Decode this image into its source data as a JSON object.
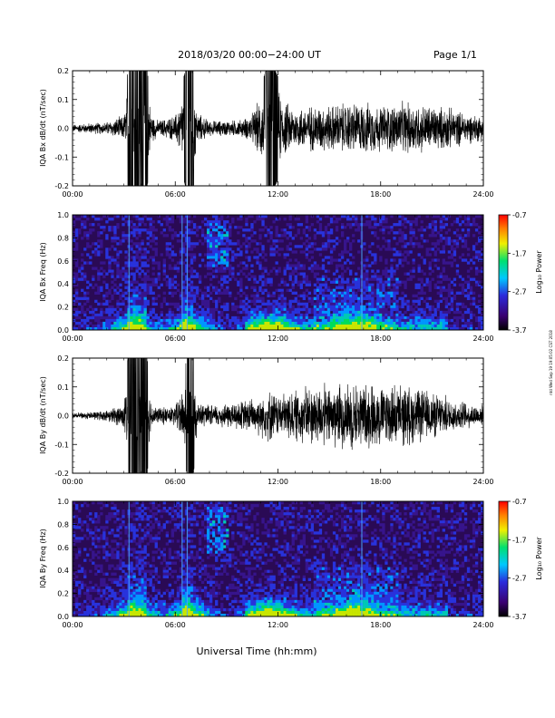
{
  "header": {
    "title": "2018/03/20  00:00−24:00 UT",
    "page": "Page 1/1"
  },
  "footer": {
    "xlabel": "Universal Time (hh:mm)",
    "side_stamp": "ntd Wed Sep 19 19:05:02 CST 2018"
  },
  "colors": {
    "trace": "#000000",
    "spectrogram_bg": "#2a0a55",
    "colorbar": [
      "#000000",
      "#3a0070",
      "#2b2bdc",
      "#00c8ff",
      "#00e070",
      "#f0f000",
      "#ff8000",
      "#ff0000"
    ]
  },
  "chart_data": [
    {
      "type": "line",
      "ylabel": "IQA Bx dB/dt (nT/sec)",
      "xlim": [
        0,
        24
      ],
      "ylim": [
        -0.2,
        0.2
      ],
      "xticks": [
        "00:00",
        "06:00",
        "12:00",
        "18:00",
        "24:00"
      ],
      "yticks": [
        "-0.2",
        "-0.1",
        "0.0",
        "0.1",
        "0.2"
      ],
      "envelope": {
        "hours": [
          0,
          1,
          2,
          3,
          3.3,
          3.5,
          4,
          4.3,
          4.6,
          5,
          6,
          6.5,
          6.8,
          7,
          7.3,
          8,
          9,
          10,
          10.5,
          11,
          11.5,
          12,
          12.5,
          13,
          14,
          15,
          16,
          17,
          18,
          19,
          20,
          21,
          22,
          23,
          24
        ],
        "amplitude": [
          0.015,
          0.02,
          0.025,
          0.05,
          0.2,
          0.2,
          0.2,
          0.2,
          0.06,
          0.03,
          0.05,
          0.15,
          0.2,
          0.2,
          0.06,
          0.03,
          0.03,
          0.035,
          0.06,
          0.12,
          0.2,
          0.15,
          0.1,
          0.08,
          0.09,
          0.09,
          0.1,
          0.1,
          0.09,
          0.1,
          0.1,
          0.09,
          0.08,
          0.06,
          0.05
        ]
      }
    },
    {
      "type": "heatmap",
      "ylabel": "IQA Bx Freq (Hz)",
      "xlim": [
        0,
        24
      ],
      "ylim": [
        0,
        1.0
      ],
      "xticks": [
        "00:00",
        "06:00",
        "12:00",
        "18:00",
        "24:00"
      ],
      "yticks": [
        "0.0",
        "0.2",
        "0.4",
        "0.6",
        "0.8",
        "1.0"
      ],
      "colorbar": {
        "label": "Log₁₀ Power",
        "ticks": [
          "-0.7",
          "-1.7",
          "-2.7",
          "-3.7"
        ],
        "range": [
          -3.7,
          -0.7
        ]
      },
      "features": {
        "vertical_lines_hours": [
          3.3,
          6.4,
          6.7,
          16.9
        ],
        "hotspot_hours": [
          3.5,
          6.8,
          11.5,
          16.5
        ]
      }
    },
    {
      "type": "line",
      "ylabel": "IQA By dB/dt (nT/sec)",
      "xlim": [
        0,
        24
      ],
      "ylim": [
        -0.2,
        0.2
      ],
      "xticks": [
        "00:00",
        "06:00",
        "12:00",
        "18:00",
        "24:00"
      ],
      "yticks": [
        "-0.2",
        "-0.1",
        "0.0",
        "0.1",
        "0.2"
      ],
      "envelope": {
        "hours": [
          0,
          1,
          2,
          3,
          3.3,
          3.5,
          4,
          4.3,
          4.6,
          5,
          6,
          6.5,
          6.8,
          7,
          7.3,
          8,
          9,
          10,
          10.5,
          11,
          11.5,
          12,
          12.5,
          13,
          14,
          15,
          16,
          17,
          18,
          19,
          20,
          21,
          22,
          23,
          24
        ],
        "amplitude": [
          0.01,
          0.015,
          0.02,
          0.05,
          0.2,
          0.2,
          0.2,
          0.2,
          0.05,
          0.03,
          0.04,
          0.12,
          0.2,
          0.2,
          0.05,
          0.04,
          0.05,
          0.06,
          0.07,
          0.08,
          0.1,
          0.08,
          0.09,
          0.1,
          0.12,
          0.12,
          0.13,
          0.13,
          0.12,
          0.12,
          0.11,
          0.09,
          0.07,
          0.05,
          0.04
        ]
      }
    },
    {
      "type": "heatmap",
      "ylabel": "IQA By Freq (Hz)",
      "xlim": [
        0,
        24
      ],
      "ylim": [
        0,
        1.0
      ],
      "xticks": [
        "00:00",
        "06:00",
        "12:00",
        "18:00",
        "24:00"
      ],
      "yticks": [
        "0.0",
        "0.2",
        "0.4",
        "0.6",
        "0.8",
        "1.0"
      ],
      "colorbar": {
        "label": "Log₁₀ Power",
        "ticks": [
          "-0.7",
          "-1.7",
          "-2.7",
          "-3.7"
        ],
        "range": [
          -3.7,
          -0.7
        ]
      },
      "features": {
        "vertical_lines_hours": [
          3.3,
          6.4,
          6.7,
          16.9
        ],
        "hotspot_hours": [
          3.5,
          6.8,
          11.5,
          16.5
        ]
      }
    }
  ]
}
